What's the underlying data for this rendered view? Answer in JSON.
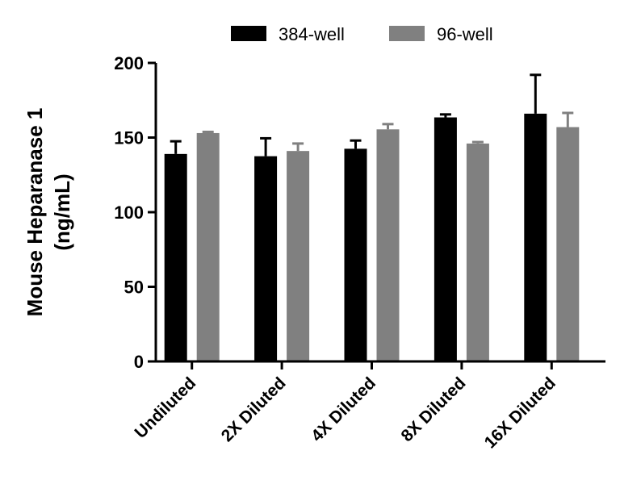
{
  "chart_data": {
    "type": "bar",
    "title": "",
    "xlabel": "",
    "ylabel": [
      "Mouse Heparanase 1",
      "(ng/mL)"
    ],
    "ylim": [
      0,
      200
    ],
    "yticks": [
      0,
      50,
      100,
      150,
      200
    ],
    "categories": [
      "Undiluted",
      "2X Diluted",
      "4X Diluted",
      "8X Diluted",
      "16X Diluted"
    ],
    "legend_position": "top-center",
    "series": [
      {
        "name": "384-well",
        "color": "#000000",
        "values": [
          139,
          137.5,
          142.5,
          163.5,
          166
        ],
        "errors": [
          8.5,
          12,
          5.5,
          2,
          26
        ]
      },
      {
        "name": "96-well",
        "color": "#808080",
        "values": [
          153,
          141,
          155.5,
          146,
          157
        ],
        "errors": [
          0.8,
          5,
          3.5,
          1,
          9.5
        ]
      }
    ]
  }
}
